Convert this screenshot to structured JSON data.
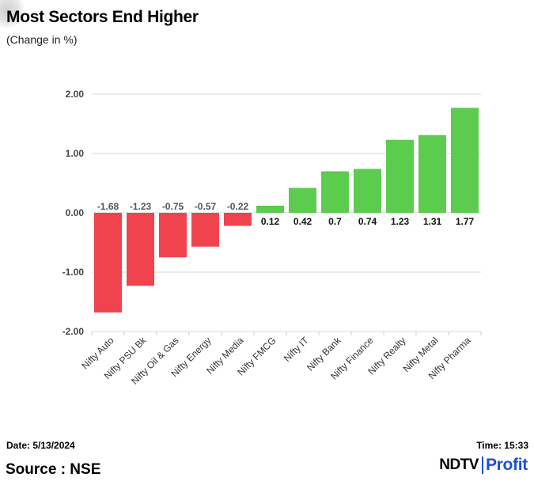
{
  "header": {
    "title": "Most Sectors End Higher",
    "subtitle": "(Change in %)"
  },
  "chart_data": {
    "type": "bar",
    "title": "Most Sectors End Higher",
    "subtitle": "(Change in %)",
    "xlabel": "",
    "ylabel": "",
    "ylim": [
      -2,
      2
    ],
    "yticks": [
      2,
      1,
      0,
      -1,
      -2
    ],
    "ytick_labels": [
      "2.00",
      "1.00",
      "0.00",
      "-1.00",
      "-2.00"
    ],
    "grid": true,
    "categories": [
      "Nifty Auto",
      "Nifty PSU Bk",
      "Nifty Oil & Gas",
      "Nifty Energy",
      "Nifty Media",
      "Nifty FMCG",
      "Nifty IT",
      "Nifty Bank",
      "Nifty Finance",
      "Nifty Realty",
      "Nifty Metal",
      "Nifty Pharma"
    ],
    "values": [
      -1.68,
      -1.23,
      -0.75,
      -0.57,
      -0.22,
      0.12,
      0.42,
      0.7,
      0.74,
      1.23,
      1.31,
      1.77
    ],
    "value_labels": [
      "-1.68",
      "-1.23",
      "-0.75",
      "-0.57",
      "-0.22",
      "0.12",
      "0.42",
      "0.7",
      "0.74",
      "1.23",
      "1.31",
      "1.77"
    ],
    "colors": {
      "positive": "#5ccc4e",
      "negative": "#f0434e",
      "grid": "#d9d9d9"
    }
  },
  "footer": {
    "date": "Date: 5/13/2024",
    "time": "Time: 15:33",
    "source": "Source : NSE"
  },
  "logo": {
    "ndtv": "NDTV",
    "profit": "Profit"
  }
}
